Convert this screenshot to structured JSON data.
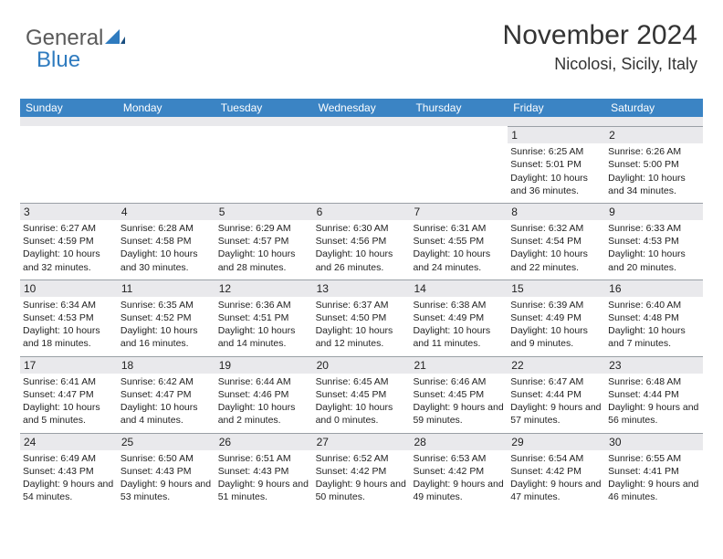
{
  "logo": {
    "general": "General",
    "blue": "Blue"
  },
  "title": {
    "month": "November 2024",
    "location": "Nicolosi, Sicily, Italy"
  },
  "colors": {
    "header_bg": "#3b84c4",
    "header_text": "#ffffff",
    "daynum_bg": "#e9e9ec",
    "border": "#9aa0a6",
    "logo_gray": "#5a5a5a",
    "logo_blue": "#2f7bbf"
  },
  "weekdays": [
    "Sunday",
    "Monday",
    "Tuesday",
    "Wednesday",
    "Thursday",
    "Friday",
    "Saturday"
  ],
  "weeks": [
    [
      null,
      null,
      null,
      null,
      null,
      {
        "n": "1",
        "sunrise": "Sunrise: 6:25 AM",
        "sunset": "Sunset: 5:01 PM",
        "daylight": "Daylight: 10 hours and 36 minutes."
      },
      {
        "n": "2",
        "sunrise": "Sunrise: 6:26 AM",
        "sunset": "Sunset: 5:00 PM",
        "daylight": "Daylight: 10 hours and 34 minutes."
      }
    ],
    [
      {
        "n": "3",
        "sunrise": "Sunrise: 6:27 AM",
        "sunset": "Sunset: 4:59 PM",
        "daylight": "Daylight: 10 hours and 32 minutes."
      },
      {
        "n": "4",
        "sunrise": "Sunrise: 6:28 AM",
        "sunset": "Sunset: 4:58 PM",
        "daylight": "Daylight: 10 hours and 30 minutes."
      },
      {
        "n": "5",
        "sunrise": "Sunrise: 6:29 AM",
        "sunset": "Sunset: 4:57 PM",
        "daylight": "Daylight: 10 hours and 28 minutes."
      },
      {
        "n": "6",
        "sunrise": "Sunrise: 6:30 AM",
        "sunset": "Sunset: 4:56 PM",
        "daylight": "Daylight: 10 hours and 26 minutes."
      },
      {
        "n": "7",
        "sunrise": "Sunrise: 6:31 AM",
        "sunset": "Sunset: 4:55 PM",
        "daylight": "Daylight: 10 hours and 24 minutes."
      },
      {
        "n": "8",
        "sunrise": "Sunrise: 6:32 AM",
        "sunset": "Sunset: 4:54 PM",
        "daylight": "Daylight: 10 hours and 22 minutes."
      },
      {
        "n": "9",
        "sunrise": "Sunrise: 6:33 AM",
        "sunset": "Sunset: 4:53 PM",
        "daylight": "Daylight: 10 hours and 20 minutes."
      }
    ],
    [
      {
        "n": "10",
        "sunrise": "Sunrise: 6:34 AM",
        "sunset": "Sunset: 4:53 PM",
        "daylight": "Daylight: 10 hours and 18 minutes."
      },
      {
        "n": "11",
        "sunrise": "Sunrise: 6:35 AM",
        "sunset": "Sunset: 4:52 PM",
        "daylight": "Daylight: 10 hours and 16 minutes."
      },
      {
        "n": "12",
        "sunrise": "Sunrise: 6:36 AM",
        "sunset": "Sunset: 4:51 PM",
        "daylight": "Daylight: 10 hours and 14 minutes."
      },
      {
        "n": "13",
        "sunrise": "Sunrise: 6:37 AM",
        "sunset": "Sunset: 4:50 PM",
        "daylight": "Daylight: 10 hours and 12 minutes."
      },
      {
        "n": "14",
        "sunrise": "Sunrise: 6:38 AM",
        "sunset": "Sunset: 4:49 PM",
        "daylight": "Daylight: 10 hours and 11 minutes."
      },
      {
        "n": "15",
        "sunrise": "Sunrise: 6:39 AM",
        "sunset": "Sunset: 4:49 PM",
        "daylight": "Daylight: 10 hours and 9 minutes."
      },
      {
        "n": "16",
        "sunrise": "Sunrise: 6:40 AM",
        "sunset": "Sunset: 4:48 PM",
        "daylight": "Daylight: 10 hours and 7 minutes."
      }
    ],
    [
      {
        "n": "17",
        "sunrise": "Sunrise: 6:41 AM",
        "sunset": "Sunset: 4:47 PM",
        "daylight": "Daylight: 10 hours and 5 minutes."
      },
      {
        "n": "18",
        "sunrise": "Sunrise: 6:42 AM",
        "sunset": "Sunset: 4:47 PM",
        "daylight": "Daylight: 10 hours and 4 minutes."
      },
      {
        "n": "19",
        "sunrise": "Sunrise: 6:44 AM",
        "sunset": "Sunset: 4:46 PM",
        "daylight": "Daylight: 10 hours and 2 minutes."
      },
      {
        "n": "20",
        "sunrise": "Sunrise: 6:45 AM",
        "sunset": "Sunset: 4:45 PM",
        "daylight": "Daylight: 10 hours and 0 minutes."
      },
      {
        "n": "21",
        "sunrise": "Sunrise: 6:46 AM",
        "sunset": "Sunset: 4:45 PM",
        "daylight": "Daylight: 9 hours and 59 minutes."
      },
      {
        "n": "22",
        "sunrise": "Sunrise: 6:47 AM",
        "sunset": "Sunset: 4:44 PM",
        "daylight": "Daylight: 9 hours and 57 minutes."
      },
      {
        "n": "23",
        "sunrise": "Sunrise: 6:48 AM",
        "sunset": "Sunset: 4:44 PM",
        "daylight": "Daylight: 9 hours and 56 minutes."
      }
    ],
    [
      {
        "n": "24",
        "sunrise": "Sunrise: 6:49 AM",
        "sunset": "Sunset: 4:43 PM",
        "daylight": "Daylight: 9 hours and 54 minutes."
      },
      {
        "n": "25",
        "sunrise": "Sunrise: 6:50 AM",
        "sunset": "Sunset: 4:43 PM",
        "daylight": "Daylight: 9 hours and 53 minutes."
      },
      {
        "n": "26",
        "sunrise": "Sunrise: 6:51 AM",
        "sunset": "Sunset: 4:43 PM",
        "daylight": "Daylight: 9 hours and 51 minutes."
      },
      {
        "n": "27",
        "sunrise": "Sunrise: 6:52 AM",
        "sunset": "Sunset: 4:42 PM",
        "daylight": "Daylight: 9 hours and 50 minutes."
      },
      {
        "n": "28",
        "sunrise": "Sunrise: 6:53 AM",
        "sunset": "Sunset: 4:42 PM",
        "daylight": "Daylight: 9 hours and 49 minutes."
      },
      {
        "n": "29",
        "sunrise": "Sunrise: 6:54 AM",
        "sunset": "Sunset: 4:42 PM",
        "daylight": "Daylight: 9 hours and 47 minutes."
      },
      {
        "n": "30",
        "sunrise": "Sunrise: 6:55 AM",
        "sunset": "Sunset: 4:41 PM",
        "daylight": "Daylight: 9 hours and 46 minutes."
      }
    ]
  ]
}
